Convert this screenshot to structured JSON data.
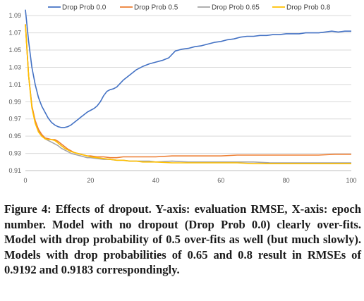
{
  "chart_data": {
    "type": "line",
    "title": "",
    "xlabel": "",
    "ylabel": "",
    "xlim": [
      0,
      100
    ],
    "ylim": [
      0.91,
      1.1
    ],
    "x_ticks": [
      "0",
      "20",
      "40",
      "60",
      "80",
      "100"
    ],
    "y_ticks": [
      "0.91",
      "0.93",
      "0.95",
      "0.97",
      "0.99",
      "1.01",
      "1.03",
      "1.05",
      "1.07",
      "1.09"
    ],
    "grid": "horizontal",
    "legend_position": "top",
    "series": [
      {
        "name": "Drop Prob 0.0",
        "color": "#4472C4",
        "points": [
          [
            0,
            1.097
          ],
          [
            1,
            1.06
          ],
          [
            2,
            1.03
          ],
          [
            3,
            1.01
          ],
          [
            4,
            0.995
          ],
          [
            5,
            0.985
          ],
          [
            6,
            0.978
          ],
          [
            7,
            0.971
          ],
          [
            8,
            0.966
          ],
          [
            9,
            0.963
          ],
          [
            10,
            0.961
          ],
          [
            11,
            0.96
          ],
          [
            12,
            0.96
          ],
          [
            13,
            0.961
          ],
          [
            14,
            0.963
          ],
          [
            15,
            0.966
          ],
          [
            16,
            0.969
          ],
          [
            17,
            0.972
          ],
          [
            18,
            0.975
          ],
          [
            19,
            0.978
          ],
          [
            20,
            0.98
          ],
          [
            21,
            0.982
          ],
          [
            22,
            0.985
          ],
          [
            23,
            0.99
          ],
          [
            24,
            0.997
          ],
          [
            25,
            1.002
          ],
          [
            26,
            1.004
          ],
          [
            27,
            1.005
          ],
          [
            28,
            1.007
          ],
          [
            29,
            1.011
          ],
          [
            30,
            1.015
          ],
          [
            32,
            1.021
          ],
          [
            34,
            1.027
          ],
          [
            36,
            1.031
          ],
          [
            38,
            1.034
          ],
          [
            40,
            1.036
          ],
          [
            42,
            1.038
          ],
          [
            44,
            1.041
          ],
          [
            46,
            1.049
          ],
          [
            48,
            1.051
          ],
          [
            50,
            1.052
          ],
          [
            52,
            1.054
          ],
          [
            54,
            1.055
          ],
          [
            56,
            1.057
          ],
          [
            58,
            1.059
          ],
          [
            60,
            1.06
          ],
          [
            62,
            1.062
          ],
          [
            64,
            1.063
          ],
          [
            66,
            1.065
          ],
          [
            68,
            1.066
          ],
          [
            70,
            1.066
          ],
          [
            72,
            1.067
          ],
          [
            74,
            1.067
          ],
          [
            76,
            1.068
          ],
          [
            78,
            1.068
          ],
          [
            80,
            1.069
          ],
          [
            82,
            1.069
          ],
          [
            84,
            1.069
          ],
          [
            86,
            1.07
          ],
          [
            88,
            1.07
          ],
          [
            90,
            1.07
          ],
          [
            92,
            1.071
          ],
          [
            94,
            1.072
          ],
          [
            96,
            1.071
          ],
          [
            98,
            1.072
          ],
          [
            100,
            1.072
          ]
        ]
      },
      {
        "name": "Drop Prob 0.5",
        "color": "#ED7D31",
        "points": [
          [
            0,
            1.08
          ],
          [
            1,
            1.02
          ],
          [
            2,
            0.985
          ],
          [
            3,
            0.968
          ],
          [
            4,
            0.958
          ],
          [
            5,
            0.952
          ],
          [
            6,
            0.948
          ],
          [
            7,
            0.947
          ],
          [
            8,
            0.946
          ],
          [
            9,
            0.946
          ],
          [
            10,
            0.944
          ],
          [
            11,
            0.941
          ],
          [
            12,
            0.938
          ],
          [
            13,
            0.935
          ],
          [
            14,
            0.933
          ],
          [
            15,
            0.931
          ],
          [
            16,
            0.93
          ],
          [
            17,
            0.929
          ],
          [
            18,
            0.928
          ],
          [
            19,
            0.927
          ],
          [
            20,
            0.927
          ],
          [
            22,
            0.926
          ],
          [
            24,
            0.926
          ],
          [
            26,
            0.925
          ],
          [
            28,
            0.925
          ],
          [
            30,
            0.926
          ],
          [
            32,
            0.926
          ],
          [
            34,
            0.926
          ],
          [
            36,
            0.926
          ],
          [
            38,
            0.926
          ],
          [
            40,
            0.926
          ],
          [
            45,
            0.927
          ],
          [
            50,
            0.927
          ],
          [
            55,
            0.927
          ],
          [
            60,
            0.927
          ],
          [
            65,
            0.928
          ],
          [
            70,
            0.928
          ],
          [
            75,
            0.928
          ],
          [
            80,
            0.928
          ],
          [
            85,
            0.928
          ],
          [
            90,
            0.928
          ],
          [
            95,
            0.929
          ],
          [
            100,
            0.929
          ]
        ]
      },
      {
        "name": "Drop Prob 0.65",
        "color": "#A5A5A5",
        "points": [
          [
            0,
            1.08
          ],
          [
            1,
            1.02
          ],
          [
            2,
            0.985
          ],
          [
            3,
            0.967
          ],
          [
            4,
            0.957
          ],
          [
            5,
            0.951
          ],
          [
            6,
            0.947
          ],
          [
            7,
            0.945
          ],
          [
            8,
            0.943
          ],
          [
            9,
            0.941
          ],
          [
            10,
            0.939
          ],
          [
            11,
            0.936
          ],
          [
            12,
            0.934
          ],
          [
            13,
            0.932
          ],
          [
            14,
            0.93
          ],
          [
            15,
            0.929
          ],
          [
            16,
            0.928
          ],
          [
            17,
            0.927
          ],
          [
            18,
            0.926
          ],
          [
            19,
            0.925
          ],
          [
            20,
            0.925
          ],
          [
            22,
            0.924
          ],
          [
            24,
            0.923
          ],
          [
            26,
            0.923
          ],
          [
            28,
            0.922
          ],
          [
            30,
            0.922
          ],
          [
            32,
            0.921
          ],
          [
            34,
            0.921
          ],
          [
            36,
            0.921
          ],
          [
            38,
            0.921
          ],
          [
            40,
            0.92
          ],
          [
            45,
            0.921
          ],
          [
            50,
            0.92
          ],
          [
            55,
            0.92
          ],
          [
            60,
            0.92
          ],
          [
            65,
            0.92
          ],
          [
            70,
            0.92
          ],
          [
            75,
            0.919
          ],
          [
            80,
            0.919
          ],
          [
            85,
            0.919
          ],
          [
            90,
            0.919
          ],
          [
            95,
            0.919
          ],
          [
            100,
            0.919
          ]
        ]
      },
      {
        "name": "Drop Prob 0.8",
        "color": "#FFC000",
        "points": [
          [
            0,
            1.08
          ],
          [
            1,
            1.02
          ],
          [
            2,
            0.983
          ],
          [
            3,
            0.965
          ],
          [
            4,
            0.955
          ],
          [
            5,
            0.95
          ],
          [
            6,
            0.947
          ],
          [
            7,
            0.946
          ],
          [
            8,
            0.946
          ],
          [
            9,
            0.945
          ],
          [
            10,
            0.942
          ],
          [
            11,
            0.939
          ],
          [
            12,
            0.936
          ],
          [
            13,
            0.934
          ],
          [
            14,
            0.932
          ],
          [
            15,
            0.931
          ],
          [
            16,
            0.93
          ],
          [
            17,
            0.929
          ],
          [
            18,
            0.928
          ],
          [
            19,
            0.927
          ],
          [
            20,
            0.926
          ],
          [
            22,
            0.925
          ],
          [
            24,
            0.924
          ],
          [
            26,
            0.923
          ],
          [
            28,
            0.922
          ],
          [
            30,
            0.922
          ],
          [
            32,
            0.921
          ],
          [
            34,
            0.921
          ],
          [
            36,
            0.92
          ],
          [
            38,
            0.92
          ],
          [
            40,
            0.92
          ],
          [
            45,
            0.919
          ],
          [
            50,
            0.919
          ],
          [
            55,
            0.919
          ],
          [
            60,
            0.919
          ],
          [
            65,
            0.919
          ],
          [
            70,
            0.918
          ],
          [
            75,
            0.918
          ],
          [
            80,
            0.918
          ],
          [
            85,
            0.918
          ],
          [
            90,
            0.918
          ],
          [
            95,
            0.918
          ],
          [
            100,
            0.918
          ]
        ]
      }
    ]
  },
  "caption": "Figure 4: Effects of dropout. Y-axis: evaluation RMSE, X-axis: epoch number. Model with no dropout (Drop Prob 0.0) clearly over-fits. Model with drop probability of 0.5 over-fits as well (but much slowly). Models with drop probabilities of 0.65 and 0.8 result in RMSEs of 0.9192 and 0.9183 correspondingly."
}
